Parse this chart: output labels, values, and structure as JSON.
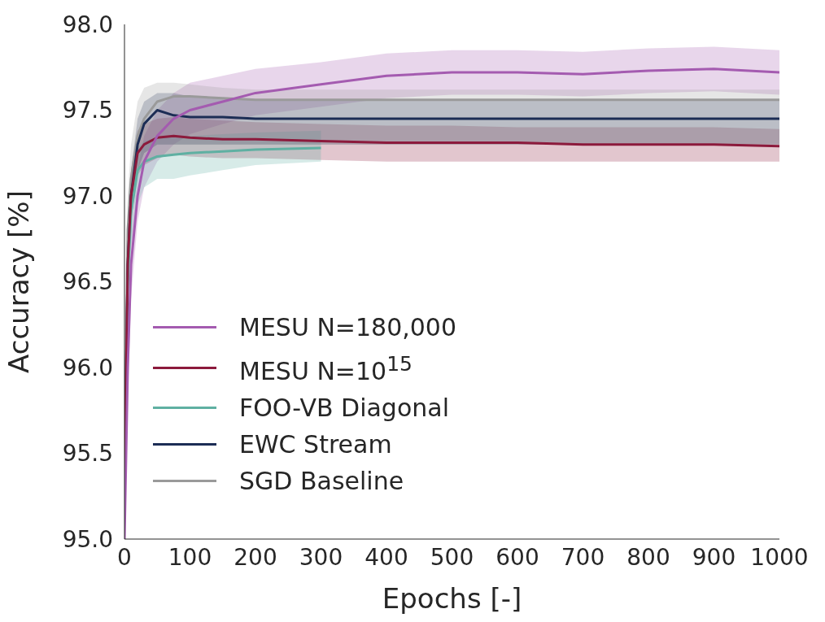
{
  "chart_data": {
    "type": "line",
    "xlabel": "Epochs [-]",
    "ylabel": "Accuracy [%]",
    "x": [
      0,
      5,
      10,
      20,
      30,
      50,
      75,
      100,
      150,
      200,
      300,
      400,
      500,
      600,
      700,
      800,
      900,
      1000
    ],
    "series": [
      {
        "name": "MESU N=180,000",
        "color": "#a45bb0",
        "values": [
          95.0,
          96.0,
          96.6,
          97.0,
          97.2,
          97.35,
          97.45,
          97.5,
          97.55,
          97.6,
          97.65,
          97.7,
          97.72,
          97.72,
          97.71,
          97.73,
          97.74,
          97.72
        ],
        "lower": [
          95.0,
          95.8,
          96.4,
          96.85,
          97.05,
          97.2,
          97.3,
          97.36,
          97.42,
          97.47,
          97.52,
          97.57,
          97.59,
          97.59,
          97.58,
          97.6,
          97.61,
          97.59
        ],
        "upper": [
          95.1,
          96.2,
          96.8,
          97.15,
          97.35,
          97.5,
          97.6,
          97.66,
          97.7,
          97.74,
          97.78,
          97.83,
          97.85,
          97.85,
          97.84,
          97.86,
          97.87,
          97.85
        ]
      },
      {
        "name": "MESU N=10$^{15}$",
        "color": "#8c1a3c",
        "values": [
          95.3,
          96.6,
          97.0,
          97.25,
          97.3,
          97.34,
          97.35,
          97.34,
          97.33,
          97.33,
          97.32,
          97.31,
          97.31,
          97.31,
          97.3,
          97.3,
          97.3,
          97.29
        ],
        "lower": [
          95.1,
          96.4,
          96.85,
          97.12,
          97.18,
          97.22,
          97.24,
          97.23,
          97.22,
          97.22,
          97.21,
          97.2,
          97.2,
          97.2,
          97.2,
          97.2,
          97.2,
          97.2
        ],
        "upper": [
          95.5,
          96.8,
          97.15,
          97.38,
          97.42,
          97.45,
          97.46,
          97.45,
          97.44,
          97.43,
          97.42,
          97.41,
          97.41,
          97.4,
          97.4,
          97.4,
          97.4,
          97.39
        ]
      },
      {
        "name": "FOO-VB Diagonal",
        "color": "#5fb0a2",
        "x": [
          0,
          5,
          10,
          20,
          30,
          50,
          75,
          100,
          150,
          200,
          300
        ],
        "values": [
          95.3,
          96.5,
          96.9,
          97.15,
          97.2,
          97.23,
          97.24,
          97.25,
          97.26,
          97.27,
          97.28
        ],
        "lower": [
          95.1,
          96.3,
          96.7,
          96.95,
          97.05,
          97.1,
          97.1,
          97.12,
          97.15,
          97.18,
          97.2
        ],
        "upper": [
          95.5,
          96.7,
          97.05,
          97.28,
          97.32,
          97.34,
          97.35,
          97.35,
          97.36,
          97.37,
          97.38
        ]
      },
      {
        "name": "EWC Stream",
        "color": "#1c2d55",
        "values": [
          95.3,
          96.6,
          97.0,
          97.3,
          97.42,
          97.5,
          97.47,
          97.46,
          97.46,
          97.45,
          97.45,
          97.45,
          97.45,
          97.45,
          97.45,
          97.45,
          97.45,
          97.45
        ],
        "lower": [
          95.1,
          96.4,
          96.85,
          97.15,
          97.25,
          97.3,
          97.3,
          97.3,
          97.3,
          97.3,
          97.3,
          97.3,
          97.3,
          97.3,
          97.3,
          97.3,
          97.3,
          97.3
        ],
        "upper": [
          95.5,
          96.8,
          97.15,
          97.45,
          97.55,
          97.6,
          97.6,
          97.58,
          97.57,
          97.56,
          97.56,
          97.56,
          97.56,
          97.56,
          97.56,
          97.56,
          97.56,
          97.56
        ]
      },
      {
        "name": "SGD Baseline",
        "color": "#9a9a9a",
        "values": [
          95.4,
          96.8,
          97.1,
          97.35,
          97.45,
          97.55,
          97.58,
          97.58,
          97.57,
          97.56,
          97.56,
          97.56,
          97.56,
          97.56,
          97.56,
          97.56,
          97.56,
          97.56
        ],
        "lower": [
          95.2,
          96.6,
          96.9,
          97.15,
          97.25,
          97.3,
          97.3,
          97.3,
          97.3,
          97.3,
          97.3,
          97.3,
          97.3,
          97.3,
          97.3,
          97.3,
          97.3,
          97.3
        ],
        "upper": [
          95.6,
          97.0,
          97.3,
          97.55,
          97.63,
          97.66,
          97.66,
          97.65,
          97.63,
          97.62,
          97.62,
          97.62,
          97.62,
          97.62,
          97.62,
          97.62,
          97.62,
          97.62
        ]
      }
    ],
    "xlim": [
      0,
      1000
    ],
    "xticks": [
      0,
      100,
      200,
      300,
      400,
      500,
      600,
      700,
      800,
      900,
      1000
    ],
    "ylim": [
      95,
      98
    ],
    "yticks": [
      {
        "value": 95,
        "label": "95.0"
      },
      {
        "value": 95.5,
        "label": "95.5"
      },
      {
        "value": 96,
        "label": "96.0"
      },
      {
        "value": 96.5,
        "label": "96.5"
      },
      {
        "value": 97,
        "label": "97.0"
      },
      {
        "value": 97.5,
        "label": "97.5"
      },
      {
        "value": 98,
        "label": "98.0"
      }
    ],
    "grid": false,
    "legend": "bottom left",
    "marker": "none",
    "line_style": "solid"
  }
}
